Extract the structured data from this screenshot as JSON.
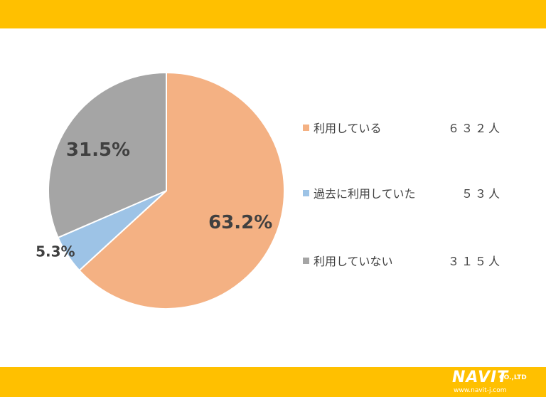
{
  "chart_data": {
    "type": "pie",
    "slices": [
      {
        "label": "利用している",
        "value": 63.2,
        "value_label": "63.2%",
        "count": "６３２人",
        "color": "#f4b183"
      },
      {
        "label": "過去に利用していた",
        "value": 5.3,
        "value_label": "5.3%",
        "count": "５３人",
        "color": "#9dc3e6"
      },
      {
        "label": "利用していない",
        "value": 31.5,
        "value_label": "31.5%",
        "count": "３１５人",
        "color": "#a5a5a5"
      }
    ],
    "start_angle": "12 o'clock",
    "direction": "clockwise",
    "legend_position": "right"
  },
  "logo": {
    "brand": "NAVIT",
    "suffix": "CO.,LTD",
    "url": "www.navit-j.com"
  },
  "colors": {
    "band": "#ffc000",
    "text": "#404040",
    "slice_border": "#ffffff"
  }
}
